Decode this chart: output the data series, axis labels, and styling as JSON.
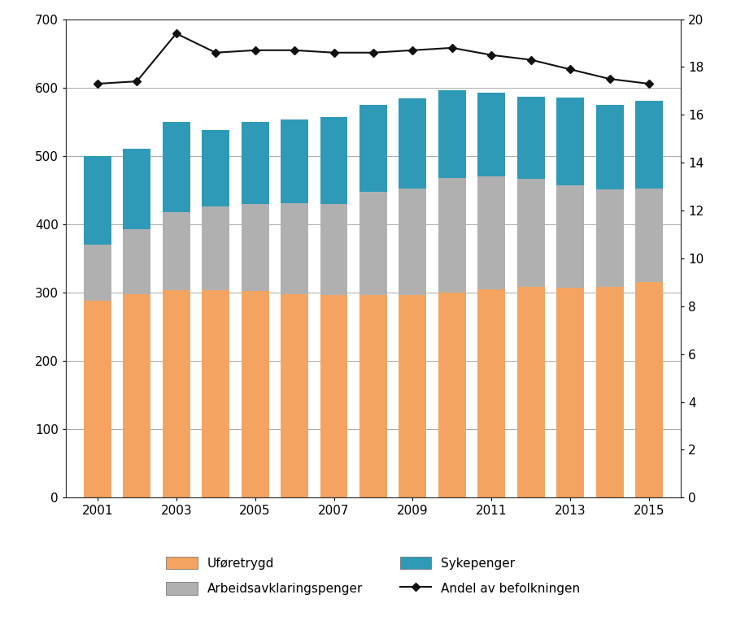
{
  "years": [
    2001,
    2002,
    2003,
    2004,
    2005,
    2006,
    2007,
    2008,
    2009,
    2010,
    2011,
    2012,
    2013,
    2014,
    2015
  ],
  "uforetrygd": [
    288,
    298,
    303,
    304,
    302,
    298,
    297,
    297,
    297,
    300,
    305,
    308,
    307,
    308,
    315
  ],
  "arbeidsavklaringspenger": [
    82,
    95,
    115,
    122,
    128,
    133,
    133,
    150,
    155,
    168,
    165,
    158,
    150,
    143,
    137
  ],
  "sykepenger": [
    130,
    118,
    132,
    112,
    120,
    122,
    127,
    128,
    132,
    128,
    122,
    120,
    128,
    124,
    128
  ],
  "andel_av_befolkningen": [
    17.3,
    17.4,
    19.4,
    18.6,
    18.7,
    18.7,
    18.6,
    18.6,
    18.7,
    18.8,
    18.5,
    18.3,
    17.9,
    17.5,
    17.3
  ],
  "bar_color_uforetrygd": "#F4A460",
  "bar_color_aap": "#B0B0B0",
  "bar_color_sykepenger": "#2E9AB7",
  "line_color": "#111111",
  "ylim_left": [
    0,
    700
  ],
  "ylim_right": [
    0,
    20
  ],
  "yticks_left": [
    0,
    100,
    200,
    300,
    400,
    500,
    600,
    700
  ],
  "yticks_right": [
    0,
    2,
    4,
    6,
    8,
    10,
    12,
    14,
    16,
    18,
    20
  ],
  "xtick_years": [
    2001,
    2003,
    2005,
    2007,
    2009,
    2011,
    2013,
    2015
  ],
  "legend_uforetrygd": "Uføretrygd",
  "legend_aap": "Arbeidsavklaringspenger",
  "legend_sykepenger": "Sykepenger",
  "legend_andel": "Andel av befolkningen",
  "background_color": "#ffffff",
  "grid_color": "#aaaaaa",
  "bar_width": 0.7
}
